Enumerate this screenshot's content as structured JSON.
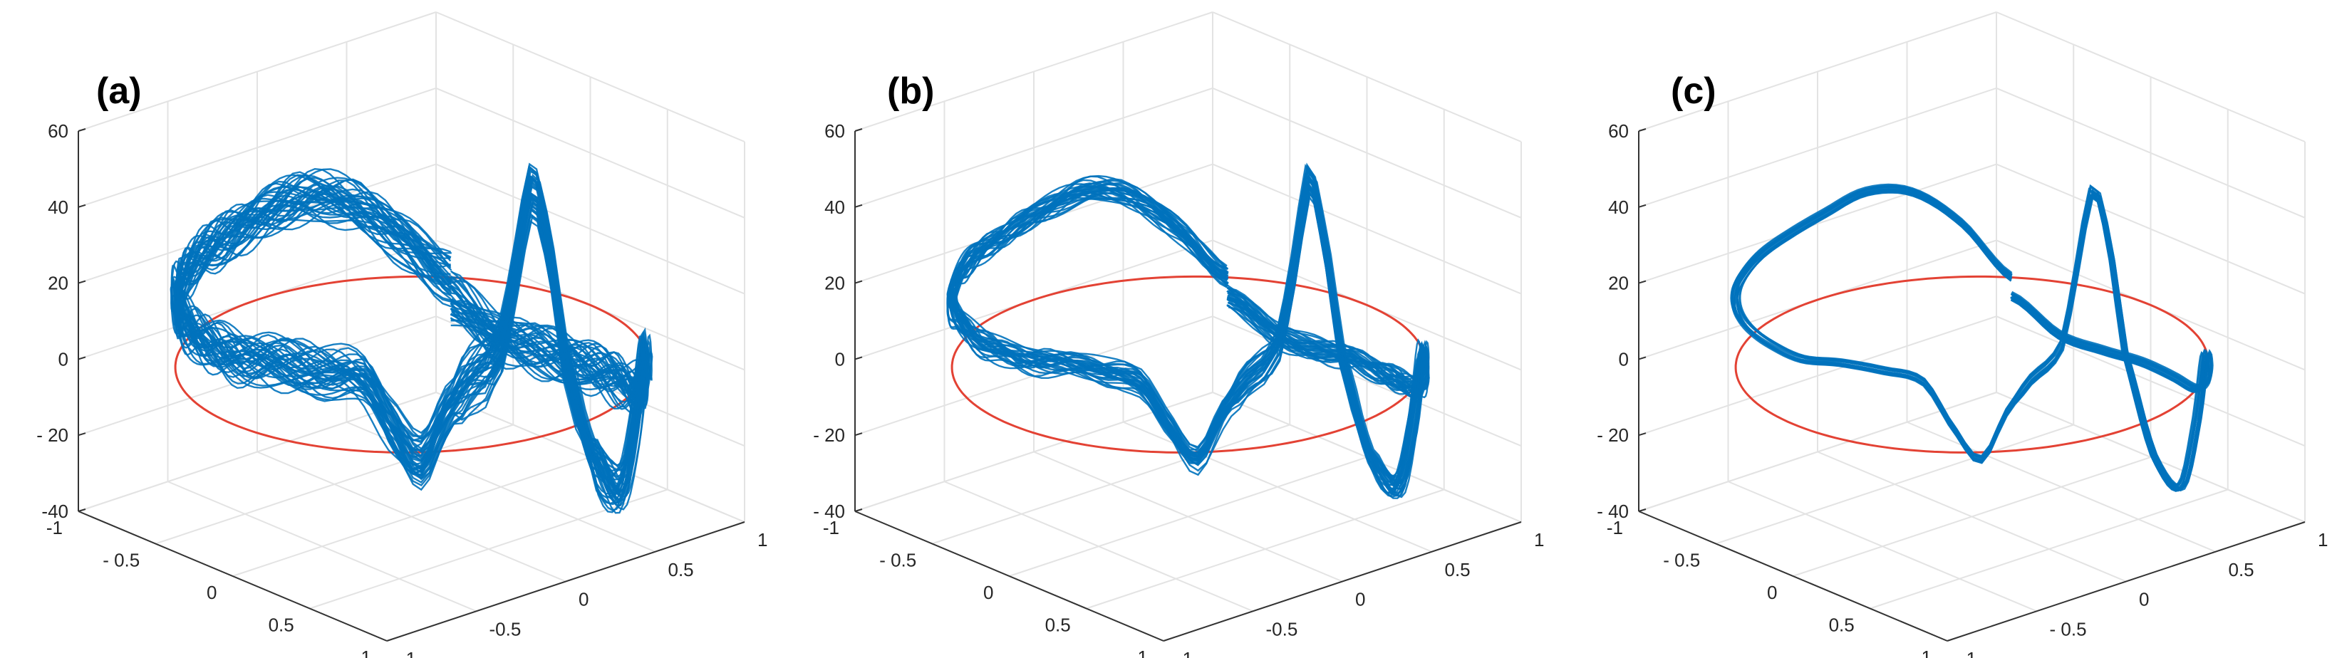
{
  "figure": {
    "panels": [
      {
        "label": "(a)"
      },
      {
        "label": "(b)"
      },
      {
        "label": "(c)"
      }
    ]
  },
  "chart_data": [
    {
      "type": "line",
      "view": "3d",
      "panel_label": "(a)",
      "xlim": [
        -1,
        1
      ],
      "ylim": [
        -1,
        1
      ],
      "zlim": [
        -40,
        60
      ],
      "x_ticks": [
        "-1",
        "- 0.5",
        "0",
        "0.5",
        "1"
      ],
      "y_ticks": [
        "-1",
        "-0.5",
        "0",
        "0.5",
        "1"
      ],
      "z_ticks": [
        "-40",
        "- 20",
        "0",
        "20",
        "40",
        "60"
      ],
      "grid": true,
      "series": [
        {
          "role": "trajectory",
          "color": "#0072BD",
          "beats": 40,
          "spread": 4.5,
          "ripple": 3.5,
          "trace": [
            [
              0,
              0
            ],
            [
              12,
              10
            ],
            [
              24,
              20
            ],
            [
              36,
              24
            ],
            [
              48,
              22
            ],
            [
              60,
              20
            ],
            [
              72,
              19
            ],
            [
              84,
              18
            ],
            [
              96,
              18
            ],
            [
              108,
              18
            ],
            [
              120,
              18
            ],
            [
              132,
              18
            ],
            [
              144,
              18
            ],
            [
              156,
              20
            ],
            [
              168,
              20
            ],
            [
              178,
              18
            ],
            [
              186,
              5
            ],
            [
              192,
              -2
            ],
            [
              198,
              10
            ],
            [
              204,
              18
            ],
            [
              212,
              26
            ],
            [
              217,
              50
            ],
            [
              220,
              65
            ],
            [
              224,
              55
            ],
            [
              230,
              20
            ],
            [
              240,
              -10
            ],
            [
              252,
              -22
            ],
            [
              262,
              -8
            ],
            [
              270,
              5
            ],
            [
              278,
              0
            ],
            [
              290,
              -10
            ],
            [
              300,
              -15
            ],
            [
              312,
              -16
            ],
            [
              324,
              -16
            ],
            [
              336,
              -16
            ],
            [
              348,
              -14
            ],
            [
              360,
              -5
            ]
          ]
        },
        {
          "role": "reference-circle",
          "color": "#E34234",
          "z": 0
        }
      ]
    },
    {
      "type": "line",
      "view": "3d",
      "panel_label": "(b)",
      "xlim": [
        -1,
        1
      ],
      "ylim": [
        -1,
        1
      ],
      "zlim": [
        -40,
        60
      ],
      "x_ticks": [
        "-1",
        "- 0.5",
        "0",
        "0.5",
        "1"
      ],
      "y_ticks": [
        "-1",
        "-0.5",
        "0",
        "0.5",
        "1"
      ],
      "z_ticks": [
        "- 40",
        "- 20",
        "0",
        "20",
        "40",
        "60"
      ],
      "grid": true,
      "series": [
        {
          "role": "trajectory",
          "color": "#0072BD",
          "beats": 30,
          "spread": 2.5,
          "ripple": 1.5,
          "trace": [
            [
              0,
              0
            ],
            [
              12,
              12
            ],
            [
              24,
              22
            ],
            [
              36,
              25
            ],
            [
              48,
              22
            ],
            [
              60,
              20
            ],
            [
              72,
              19
            ],
            [
              84,
              18
            ],
            [
              96,
              18
            ],
            [
              108,
              18
            ],
            [
              120,
              18
            ],
            [
              132,
              18
            ],
            [
              144,
              18
            ],
            [
              156,
              20
            ],
            [
              168,
              20
            ],
            [
              178,
              18
            ],
            [
              186,
              5
            ],
            [
              192,
              -2
            ],
            [
              198,
              10
            ],
            [
              204,
              18
            ],
            [
              212,
              26
            ],
            [
              217,
              50
            ],
            [
              220,
              68
            ],
            [
              224,
              55
            ],
            [
              230,
              20
            ],
            [
              240,
              -10
            ],
            [
              252,
              -22
            ],
            [
              262,
              -8
            ],
            [
              270,
              5
            ],
            [
              278,
              0
            ],
            [
              290,
              -10
            ],
            [
              300,
              -15
            ],
            [
              312,
              -16
            ],
            [
              324,
              -16
            ],
            [
              336,
              -16
            ],
            [
              348,
              -14
            ],
            [
              360,
              -5
            ]
          ]
        },
        {
          "role": "reference-circle",
          "color": "#E34234",
          "z": 0
        }
      ]
    },
    {
      "type": "line",
      "view": "3d",
      "panel_label": "(c)",
      "xlim": [
        -1,
        1
      ],
      "ylim": [
        -1,
        1
      ],
      "zlim": [
        -40,
        60
      ],
      "x_ticks": [
        "-1",
        "- 0.5",
        "0",
        "0.5",
        "1"
      ],
      "y_ticks": [
        "-1",
        "- 0.5",
        "0",
        "0.5",
        "1"
      ],
      "z_ticks": [
        "- 40",
        "- 20",
        "0",
        "20",
        "40",
        "60"
      ],
      "grid": true,
      "series": [
        {
          "role": "trajectory",
          "color": "#0072BD",
          "beats": 18,
          "spread": 0.9,
          "ripple": 0,
          "trace": [
            [
              0,
              0
            ],
            [
              12,
              14
            ],
            [
              24,
              23
            ],
            [
              36,
              25
            ],
            [
              48,
              22
            ],
            [
              60,
              20
            ],
            [
              72,
              19
            ],
            [
              84,
              18
            ],
            [
              96,
              18
            ],
            [
              108,
              18
            ],
            [
              120,
              18
            ],
            [
              132,
              18
            ],
            [
              144,
              18
            ],
            [
              156,
              20
            ],
            [
              168,
              20
            ],
            [
              178,
              18
            ],
            [
              186,
              5
            ],
            [
              192,
              -2
            ],
            [
              198,
              10
            ],
            [
              204,
              18
            ],
            [
              212,
              26
            ],
            [
              217,
              50
            ],
            [
              220,
              65
            ],
            [
              224,
              55
            ],
            [
              230,
              20
            ],
            [
              240,
              -10
            ],
            [
              252,
              -22
            ],
            [
              262,
              -8
            ],
            [
              270,
              5
            ],
            [
              278,
              0
            ],
            [
              290,
              -10
            ],
            [
              300,
              -15
            ],
            [
              312,
              -16
            ],
            [
              324,
              -16
            ],
            [
              336,
              -16
            ],
            [
              348,
              -14
            ],
            [
              360,
              -5
            ]
          ]
        },
        {
          "role": "reference-circle",
          "color": "#E34234",
          "z": 0
        }
      ]
    }
  ]
}
